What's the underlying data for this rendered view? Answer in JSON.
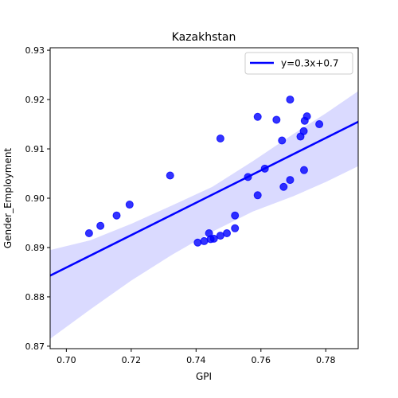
{
  "chart_data": {
    "type": "scatter",
    "title": "Kazakhstan",
    "xlabel": "GPI",
    "ylabel": "Gender_Employment",
    "xlim": [
      0.695,
      0.79
    ],
    "ylim": [
      0.8695,
      0.9305
    ],
    "xticks": [
      "0.70",
      "0.72",
      "0.74",
      "0.76",
      "0.78"
    ],
    "xtick_values": [
      0.7,
      0.72,
      0.74,
      0.76,
      0.78
    ],
    "yticks": [
      "0.87",
      "0.88",
      "0.89",
      "0.90",
      "0.91",
      "0.92",
      "0.93"
    ],
    "ytick_values": [
      0.87,
      0.88,
      0.89,
      0.9,
      0.91,
      0.92,
      0.93
    ],
    "legend": {
      "label": "y=0.3x+0.7",
      "location": "top-right"
    },
    "grid": false,
    "colors": {
      "points": "#0000ff",
      "line": "#0000ff",
      "band": "#d6d6ff"
    },
    "points": {
      "x": [
        0.707,
        0.7105,
        0.7155,
        0.7195,
        0.732,
        0.7405,
        0.7425,
        0.744,
        0.7445,
        0.7455,
        0.7475,
        0.7475,
        0.7495,
        0.752,
        0.752,
        0.756,
        0.759,
        0.759,
        0.7612,
        0.7648,
        0.7665,
        0.767,
        0.769,
        0.769,
        0.7722,
        0.7732,
        0.7733,
        0.7735,
        0.7742,
        0.778
      ],
      "y": [
        0.8929,
        0.8944,
        0.8965,
        0.8987,
        0.9046,
        0.891,
        0.8913,
        0.8929,
        0.8917,
        0.8918,
        0.9121,
        0.8924,
        0.8929,
        0.8965,
        0.8939,
        0.9043,
        0.9006,
        0.9165,
        0.906,
        0.9159,
        0.9117,
        0.9023,
        0.92,
        0.9037,
        0.9125,
        0.9136,
        0.9057,
        0.9157,
        0.9166,
        0.915
      ]
    },
    "fit": {
      "slope": 0.3,
      "intercept": 0.7,
      "x": [
        0.695,
        0.79
      ],
      "y": [
        0.8843,
        0.9155
      ]
    },
    "confidence_band": {
      "x": [
        0.695,
        0.7075,
        0.72,
        0.7325,
        0.745,
        0.7575,
        0.77,
        0.78,
        0.79
      ],
      "upper": [
        0.8895,
        0.8915,
        0.8948,
        0.8985,
        0.9023,
        0.9075,
        0.913,
        0.9172,
        0.9217
      ],
      "lower": [
        0.8715,
        0.8775,
        0.8833,
        0.8885,
        0.8932,
        0.8973,
        0.9004,
        0.9033,
        0.9065
      ]
    }
  }
}
